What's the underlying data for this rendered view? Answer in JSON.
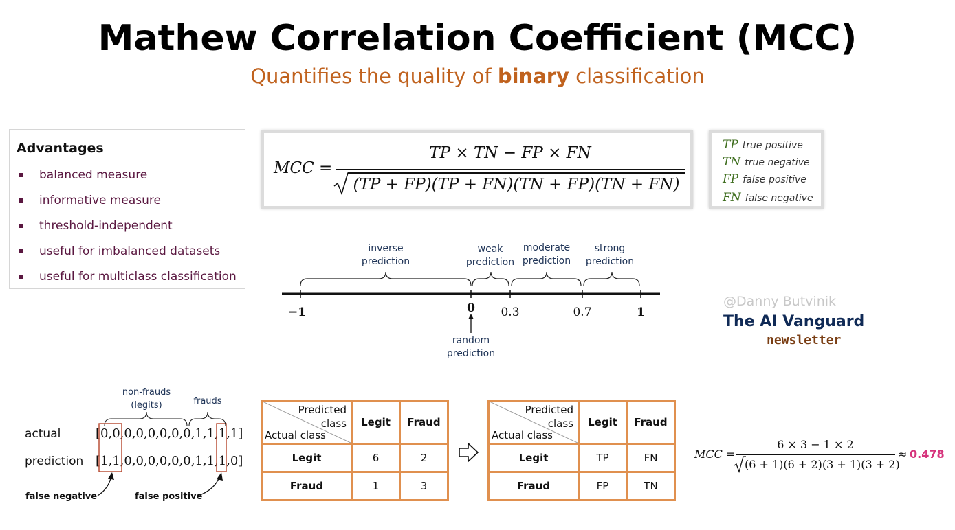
{
  "header": {
    "title": "Mathew Correlation Coefficient (MCC)",
    "subtitle_prefix": "Quantifies the quality of ",
    "subtitle_bold": "binary",
    "subtitle_suffix": " classification"
  },
  "advantages": {
    "title": "Advantages",
    "items": [
      "balanced measure",
      "informative measure",
      "threshold-independent",
      "useful for imbalanced datasets",
      "useful for multiclass classification"
    ]
  },
  "formula": {
    "lhs": "MCC =",
    "numerator": "TP × TN − FP × FN",
    "denominator": "(TP + FP)(TP + FN)(TN + FP)(TN + FN)"
  },
  "legend": [
    {
      "abbr": "TP",
      "label": "true positive"
    },
    {
      "abbr": "TN",
      "label": "true negative"
    },
    {
      "abbr": "FP",
      "label": "false positive"
    },
    {
      "abbr": "FN",
      "label": "false negative"
    }
  ],
  "scale": {
    "ticks": [
      "−1",
      "0",
      "0.3",
      "0.7",
      "1"
    ],
    "ranges": [
      {
        "line1": "inverse",
        "line2": "prediction"
      },
      {
        "line1": "weak",
        "line2": "prediction"
      },
      {
        "line1": "moderate",
        "line2": "prediction"
      },
      {
        "line1": "strong",
        "line2": "prediction"
      }
    ],
    "random_line1": "random",
    "random_line2": "prediction"
  },
  "branding": {
    "handle": "@Danny Butvinik",
    "name": "The AI Vanguard",
    "sub": "newsletter"
  },
  "example": {
    "actual_label": "actual",
    "prediction_label": "prediction",
    "actual_seq": "[0,0,0,0,0,0,0,0,1,1,1,1]",
    "prediction_seq": "[1,1,0,0,0,0,0,0,1,1,1,0]",
    "group_nonfrauds_1": "non-frauds",
    "group_nonfrauds_2": "(legits)",
    "group_frauds": "frauds",
    "false_negative": "false negative",
    "false_positive": "false positive"
  },
  "matrix_counts": {
    "corner_pred_1": "Predicted",
    "corner_pred_2": "class",
    "corner_actual": "Actual class",
    "col_legit": "Legit",
    "col_fraud": "Fraud",
    "row_legit": "Legit",
    "row_fraud": "Fraud",
    "cells": [
      [
        "6",
        "2"
      ],
      [
        "1",
        "3"
      ]
    ]
  },
  "matrix_symbols": {
    "corner_pred_1": "Predicted",
    "corner_pred_2": "class",
    "corner_actual": "Actual class",
    "col_legit": "Legit",
    "col_fraud": "Fraud",
    "row_legit": "Legit",
    "row_fraud": "Fraud",
    "cells": [
      [
        "TP",
        "FN"
      ],
      [
        "FP",
        "TN"
      ]
    ]
  },
  "calc": {
    "lhs": "MCC =",
    "numerator": "6 × 3 − 1 × 2",
    "denominator": "(6 + 1)(6 + 2)(3 + 1)(3 + 2)",
    "approx": "≈",
    "result": "0.478"
  }
}
